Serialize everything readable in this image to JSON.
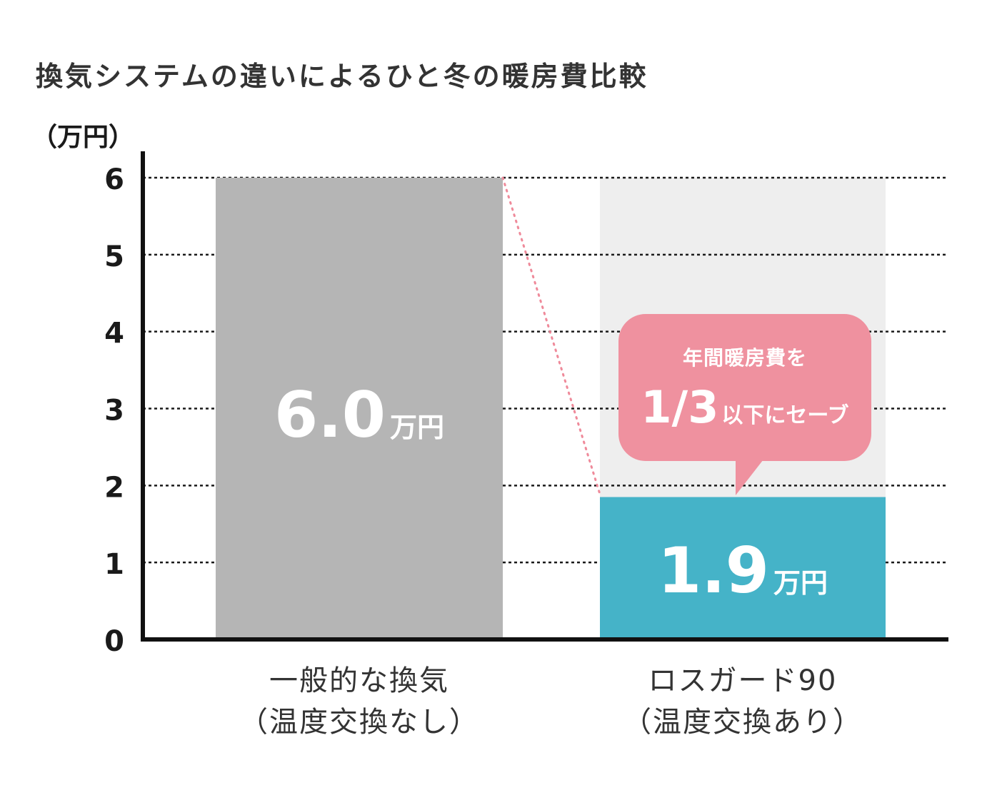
{
  "chart_data": {
    "type": "bar",
    "title": "換気システムの違いによるひと冬の暖房費比較",
    "ylabel": "（万円）",
    "ylim": [
      0,
      6
    ],
    "yticks": [
      "0",
      "1",
      "2",
      "3",
      "4",
      "5",
      "6"
    ],
    "grid": true,
    "categories": [
      {
        "line1": "一般的な換気",
        "line2": "（温度交換なし）"
      },
      {
        "line1": "ロスガード90",
        "line2": "（温度交換あり）"
      }
    ],
    "values": [
      6.0,
      1.85
    ],
    "value_labels": [
      "6.0",
      "1.9"
    ],
    "value_unit": "万円",
    "callout": {
      "line1": "年間暖房費を",
      "big": "1/3",
      "small": "以下にセーブ"
    },
    "colors": {
      "bar1": "#b5b5b5",
      "bar2": "#45b3c8",
      "bar2_background": "#eeeeee",
      "callout": "#ef919f",
      "connector": "#ef8a9a",
      "grid": "#1a1a1a",
      "axis": "#111111"
    }
  }
}
